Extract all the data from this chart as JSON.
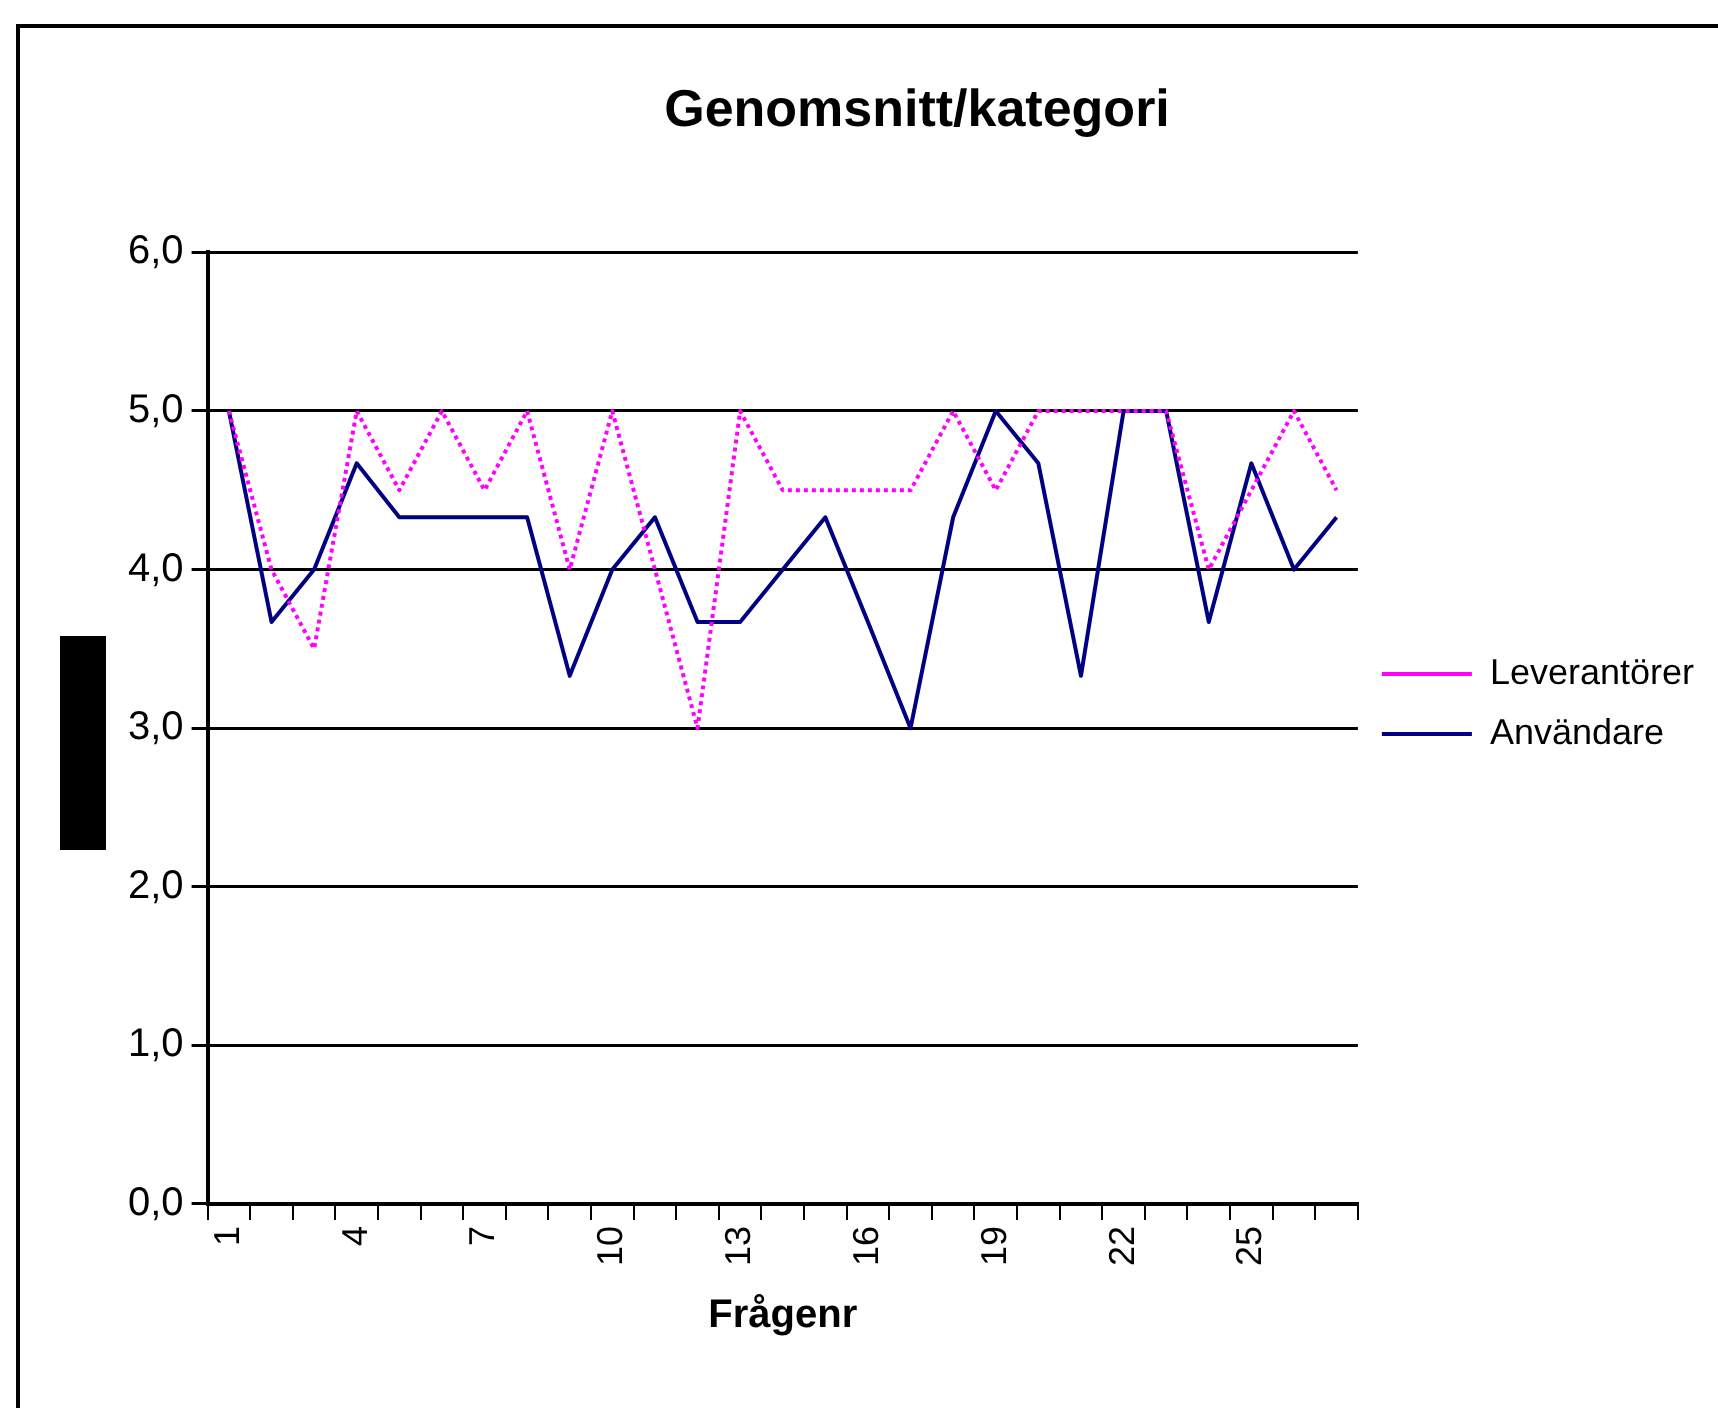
{
  "chart_data": {
    "type": "line",
    "title": "Genomsnitt/kategori",
    "xlabel": "Frågenr",
    "categories": [
      "1",
      null,
      null,
      "4",
      null,
      null,
      "7",
      null,
      null,
      "10",
      null,
      null,
      "13",
      null,
      null,
      "16",
      null,
      null,
      "19",
      null,
      null,
      "22",
      null,
      null,
      "25",
      null,
      null
    ],
    "series": [
      {
        "name": "Användare",
        "color": "#000080",
        "line_style": "solid",
        "values": [
          5.0,
          3.67,
          4.0,
          4.67,
          4.33,
          4.33,
          4.33,
          4.33,
          3.33,
          4.0,
          4.33,
          3.67,
          3.67,
          4.0,
          4.33,
          3.67,
          3.0,
          4.33,
          5.0,
          4.67,
          3.33,
          5.0,
          5.0,
          3.67,
          4.67,
          4.0,
          4.33
        ]
      },
      {
        "name": "Leverantörer",
        "color": "#ff00ff",
        "line_style": "dotted",
        "values": [
          5.0,
          4.0,
          3.5,
          5.0,
          4.5,
          5.0,
          4.5,
          5.0,
          4.0,
          5.0,
          4.0,
          3.0,
          5.0,
          4.5,
          4.5,
          4.5,
          4.5,
          5.0,
          4.5,
          5.0,
          5.0,
          5.0,
          5.0,
          4.0,
          4.5,
          5.0,
          4.5
        ]
      }
    ],
    "ylim": [
      0,
      6
    ],
    "yticks": [
      {
        "value": 0,
        "label": "0,0"
      },
      {
        "value": 1,
        "label": "1,0"
      },
      {
        "value": 2,
        "label": "2,0"
      },
      {
        "value": 3,
        "label": "3,0"
      },
      {
        "value": 4,
        "label": "4,0"
      },
      {
        "value": 5,
        "label": "5,0"
      },
      {
        "value": 6,
        "label": "6,0"
      }
    ],
    "grid": "y",
    "legend": "right",
    "marker": "none"
  }
}
